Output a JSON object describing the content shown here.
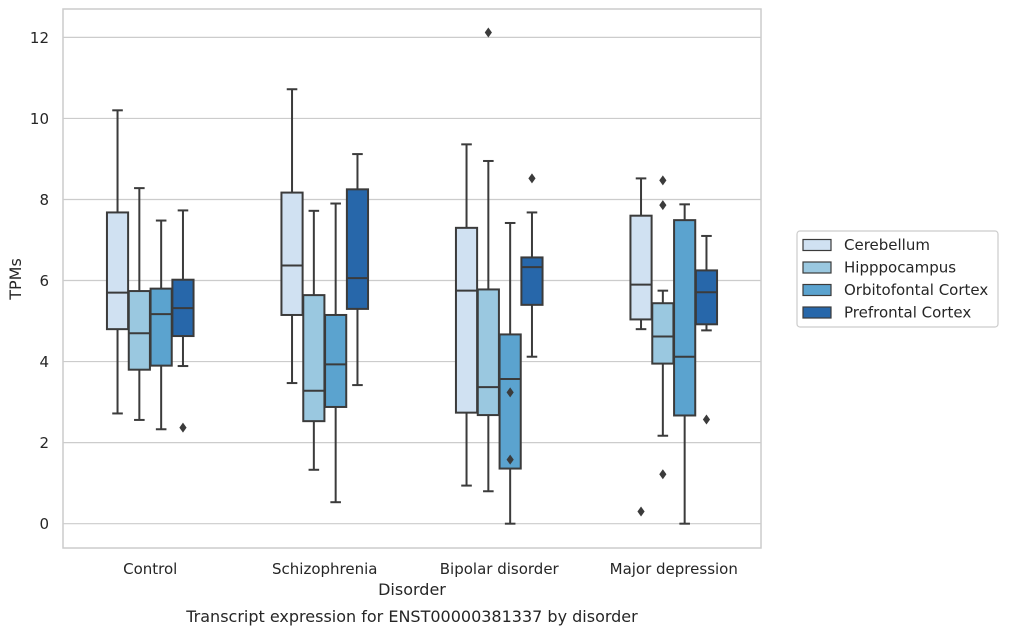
{
  "chart_data": {
    "type": "box",
    "caption": "Transcript expression for ENST00000381337 by disorder",
    "xlabel": "Disorder",
    "ylabel": "TPMs",
    "ylim": [
      -0.6,
      12.7
    ],
    "yticks": [
      0,
      2,
      4,
      6,
      8,
      10,
      12
    ],
    "grid": "horizontal",
    "legend_position": "right",
    "categories": [
      "Control",
      "Schizophrenia",
      "Bipolar disorder",
      "Major depression"
    ],
    "series": [
      {
        "name": "Cerebellum",
        "color": "#d0e1f2",
        "boxes": [
          {
            "whisker_low": 2.72,
            "q1": 4.8,
            "median": 5.7,
            "q3": 7.68,
            "whisker_high": 10.2,
            "outliers": []
          },
          {
            "whisker_low": 3.47,
            "q1": 5.15,
            "median": 6.37,
            "q3": 8.17,
            "whisker_high": 10.72,
            "outliers": []
          },
          {
            "whisker_low": 0.94,
            "q1": 2.74,
            "median": 5.75,
            "q3": 7.3,
            "whisker_high": 9.36,
            "outliers": []
          },
          {
            "whisker_low": 4.8,
            "q1": 5.04,
            "median": 5.9,
            "q3": 7.6,
            "whisker_high": 8.52,
            "outliers": [
              0.3
            ]
          }
        ]
      },
      {
        "name": "Hipppocampus",
        "color": "#9ac8e0",
        "boxes": [
          {
            "whisker_low": 2.56,
            "q1": 3.8,
            "median": 4.7,
            "q3": 5.74,
            "whisker_high": 8.28,
            "outliers": []
          },
          {
            "whisker_low": 1.33,
            "q1": 2.53,
            "median": 3.28,
            "q3": 5.64,
            "whisker_high": 7.72,
            "outliers": []
          },
          {
            "whisker_low": 0.8,
            "q1": 2.68,
            "median": 3.37,
            "q3": 5.78,
            "whisker_high": 8.95,
            "outliers": [
              12.12
            ]
          },
          {
            "whisker_low": 2.17,
            "q1": 3.95,
            "median": 4.62,
            "q3": 5.44,
            "whisker_high": 5.75,
            "outliers": [
              8.47,
              7.86,
              1.22
            ]
          }
        ]
      },
      {
        "name": "Orbitofontal Cortex",
        "color": "#5ba3cf",
        "boxes": [
          {
            "whisker_low": 2.33,
            "q1": 3.9,
            "median": 5.17,
            "q3": 5.8,
            "whisker_high": 7.48,
            "outliers": []
          },
          {
            "whisker_low": 0.53,
            "q1": 2.88,
            "median": 3.93,
            "q3": 5.15,
            "whisker_high": 7.9,
            "outliers": []
          },
          {
            "whisker_low": 0.0,
            "q1": 1.36,
            "median": 3.57,
            "q3": 4.67,
            "whisker_high": 7.42,
            "outliers": [
              3.24,
              1.58
            ]
          },
          {
            "whisker_low": 0.0,
            "q1": 2.67,
            "median": 4.12,
            "q3": 7.49,
            "whisker_high": 7.88,
            "outliers": []
          }
        ]
      },
      {
        "name": "Prefrontal Cortex",
        "color": "#2767aa",
        "boxes": [
          {
            "whisker_low": 3.89,
            "q1": 4.63,
            "median": 5.32,
            "q3": 6.02,
            "whisker_high": 7.73,
            "outliers": [
              2.37
            ]
          },
          {
            "whisker_low": 3.42,
            "q1": 5.3,
            "median": 6.06,
            "q3": 8.25,
            "whisker_high": 9.12,
            "outliers": []
          },
          {
            "whisker_low": 4.12,
            "q1": 5.4,
            "median": 6.33,
            "q3": 6.57,
            "whisker_high": 7.68,
            "outliers": [
              8.52
            ]
          },
          {
            "whisker_low": 4.77,
            "q1": 4.92,
            "median": 5.71,
            "q3": 6.25,
            "whisker_high": 7.1,
            "outliers": [
              2.57
            ]
          }
        ]
      }
    ]
  }
}
